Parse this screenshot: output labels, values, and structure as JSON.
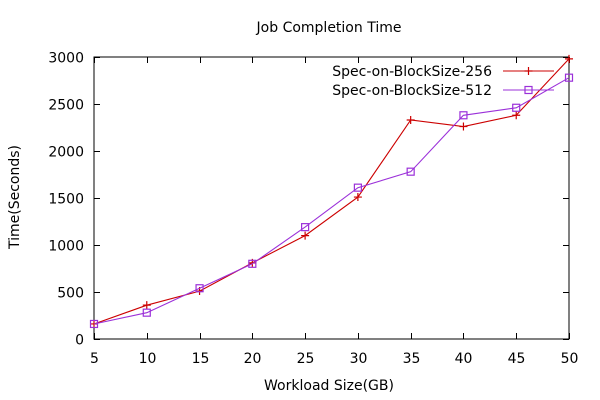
{
  "chart_data": {
    "type": "line",
    "title": "Job Completion Time",
    "xlabel": "Workload Size(GB)",
    "ylabel": "Time(Seconds)",
    "x": [
      5,
      10,
      15,
      20,
      25,
      30,
      35,
      40,
      45,
      50
    ],
    "xlim": [
      5,
      50
    ],
    "ylim": [
      0,
      3000
    ],
    "xticks": [
      5,
      10,
      15,
      20,
      25,
      30,
      35,
      40,
      45,
      50
    ],
    "yticks": [
      0,
      500,
      1000,
      1500,
      2000,
      2500,
      3000
    ],
    "grid": false,
    "legend_position": "top-right",
    "series": [
      {
        "name": "Spec-on-BlockSize-256",
        "color": "#cc0000",
        "marker": "plus",
        "values": [
          160,
          360,
          510,
          810,
          1100,
          1510,
          2330,
          2260,
          2380,
          2980
        ]
      },
      {
        "name": "Spec-on-BlockSize-512",
        "color": "#9b30d9",
        "marker": "square",
        "values": [
          160,
          280,
          540,
          800,
          1190,
          1610,
          1780,
          2380,
          2460,
          2780
        ]
      }
    ]
  }
}
